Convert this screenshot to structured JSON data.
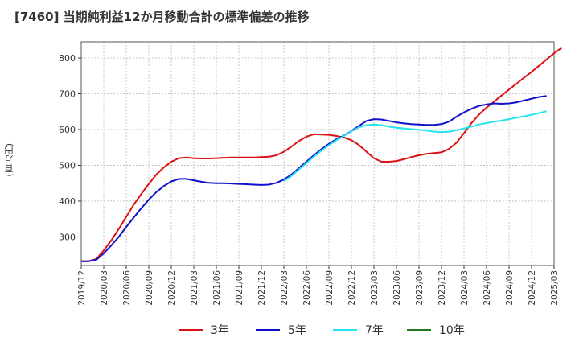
{
  "chart_data": {
    "type": "line",
    "title": "[7460]  当期純利益12か月移動合計の標準偏差の推移",
    "ylabel": "(百万円)",
    "xlabel": "",
    "ylim": [
      220,
      845
    ],
    "y_ticks": [
      300,
      400,
      500,
      600,
      700,
      800
    ],
    "grid": true,
    "legend_position": "bottom",
    "x_tick_labels": [
      "2019/12",
      "2020/03",
      "2020/06",
      "2020/09",
      "2020/12",
      "2021/03",
      "2021/06",
      "2021/09",
      "2021/12",
      "2022/03",
      "2022/06",
      "2022/09",
      "2022/12",
      "2023/03",
      "2023/06",
      "2023/09",
      "2023/12",
      "2024/03",
      "2024/06",
      "2024/09",
      "2024/12",
      "2025/03"
    ],
    "series": [
      {
        "name": "3年",
        "color": "#dd1111",
        "start_index": 0,
        "values": [
          232,
          232,
          238,
          262,
          290,
          322,
          356,
          390,
          420,
          448,
          474,
          494,
          510,
          520,
          522,
          520,
          519,
          519,
          520,
          521,
          522,
          522,
          522,
          522,
          523,
          524,
          528,
          538,
          552,
          568,
          580,
          587,
          586,
          585,
          582,
          578,
          570,
          557,
          538,
          520,
          510,
          510,
          512,
          517,
          523,
          528,
          532,
          534,
          536,
          546,
          563,
          590,
          618,
          642,
          661,
          678,
          695,
          712,
          728,
          745,
          761,
          778,
          796,
          813,
          828
        ]
      },
      {
        "name": "5年",
        "color": "#1111cc",
        "start_index": 0,
        "values": [
          232,
          232,
          236,
          254,
          276,
          300,
          328,
          354,
          380,
          404,
          425,
          442,
          455,
          462,
          462,
          458,
          454,
          451,
          450,
          450,
          449,
          448,
          447,
          446,
          445,
          446,
          451,
          460,
          474,
          492,
          510,
          528,
          545,
          560,
          573,
          583,
          596,
          610,
          624,
          629,
          628,
          624,
          620,
          617,
          615,
          614,
          613,
          613,
          615,
          622,
          636,
          648,
          658,
          666,
          670,
          673,
          672,
          673,
          676,
          681,
          686,
          691,
          694
        ]
      },
      {
        "name": "7年",
        "color": "#22e5ee",
        "start_index": 27,
        "values": [
          456,
          470,
          488,
          506,
          524,
          541,
          556,
          570,
          582,
          595,
          606,
          612,
          614,
          612,
          608,
          605,
          603,
          601,
          599,
          597,
          594,
          593,
          594,
          598,
          603,
          608,
          614,
          618,
          622,
          625,
          629,
          633,
          637,
          641,
          646,
          651
        ]
      },
      {
        "name": "10年",
        "color": "#227722",
        "start_index": 0,
        "values": []
      }
    ]
  }
}
